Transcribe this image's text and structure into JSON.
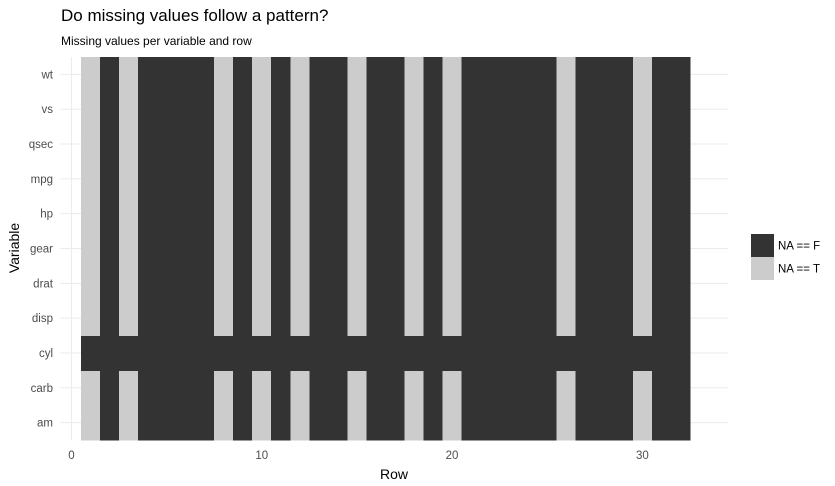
{
  "chart_data": {
    "type": "heatmap",
    "title": "Do missing values follow a pattern?",
    "subtitle": "Missing values per variable and row",
    "xlabel": "Row",
    "ylabel": "Variable",
    "xlim": [
      0.5,
      32.5
    ],
    "xticks": [
      0,
      10,
      20,
      30
    ],
    "variables": [
      "am",
      "carb",
      "cyl",
      "disp",
      "drat",
      "gear",
      "hp",
      "mpg",
      "qsec",
      "vs",
      "wt"
    ],
    "rows": [
      1,
      2,
      3,
      4,
      5,
      6,
      7,
      8,
      9,
      10,
      11,
      12,
      13,
      14,
      15,
      16,
      17,
      18,
      19,
      20,
      21,
      22,
      23,
      24,
      25,
      26,
      27,
      28,
      29,
      30,
      31,
      32
    ],
    "missing_rows_all_but_cyl": [
      1,
      3,
      8,
      10,
      12,
      15,
      18,
      20,
      26,
      30
    ],
    "missing_rows_cyl": [],
    "legend": {
      "entries": [
        {
          "label": "NA == F",
          "color": "#333333"
        },
        {
          "label": "NA == T",
          "color": "#cccccc"
        }
      ]
    },
    "colors": {
      "missing_false": "#333333",
      "missing_true": "#cccccc"
    },
    "grid": true
  }
}
